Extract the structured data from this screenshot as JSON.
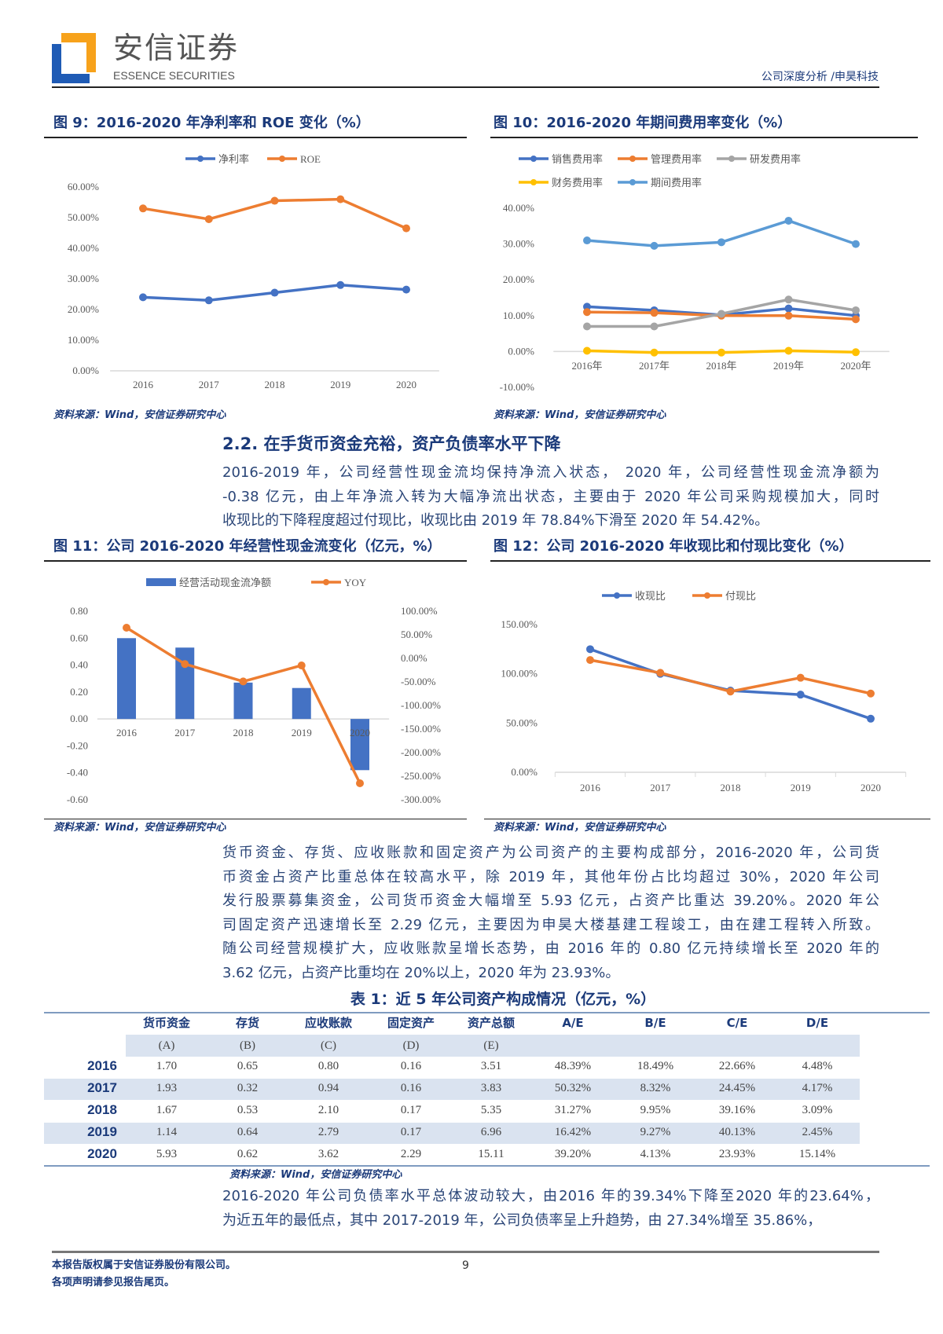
{
  "header": {
    "logo_cn": "安信证券",
    "logo_en": "ESSENCE SECURITIES",
    "report_type": "公司深度分析 /申昊科技",
    "logo_colors": {
      "blue": "#1f5bb5",
      "orange": "#f7a21b"
    }
  },
  "figures": {
    "fig9": {
      "title": "图 9：2016-2020 年净利率和 ROE 变化（%）",
      "source": "资料来源：Wind，安信证券研究中心"
    },
    "fig10": {
      "title": "图 10：2016-2020 年期间费用率变化（%）",
      "source": "资料来源：Wind，安信证券研究中心"
    },
    "fig11": {
      "title": "图 11：公司 2016-2020 年经营性现金流变化（亿元，%）",
      "source": "资料来源：Wind，安信证券研究中心"
    },
    "fig12": {
      "title": "图 12：公司 2016-2020 年收现比和付现比变化（%）",
      "source": "资料来源：Wind，安信证券研究中心"
    }
  },
  "section": {
    "heading": "2.2. 在手货币资金充裕，资产负债率水平下降",
    "para1": [
      "2016-2019 年，公司经营性现金流均保持净流入状态， 2020 年，公司经营性现金流净额为",
      "-0.38 亿元，由上年净流入转为大幅净流出状态，主要由于 2020 年公司采购规模加大，同时",
      "收现比的下降程度超过付现比，收现比由 2019 年 78.84%下滑至 2020 年 54.42%。"
    ],
    "para2": [
      "货币资金、存货、应收账款和固定资产为公司资产的主要构成部分，2016-2020 年，公司货",
      "币资金占资产比重总体在较高水平，除 2019 年，其他年份占比均超过 30%，2020 年公司",
      "发行股票募集资金，公司货币资金大幅增至 5.93 亿元，占资产比重达 39.20%。2020 年公",
      "司固定资产迅速增长至 2.29 亿元，主要因为申昊大楼基建工程竣工，由在建工程转入所致。",
      "随公司经营规模扩大，应收账款呈增长态势，由 2016 年的 0.80 亿元持续增长至 2020 年的",
      "3.62 亿元，占资产比重均在 20%以上，2020 年为 23.93%。"
    ],
    "para3": [
      "2016-2020 年公司负债率水平总体波动较大，由2016 年的39.34%下降至2020 年的23.64%，",
      "为近五年的最低点，其中 2017-2019 年，公司负债率呈上升趋势，由 27.34%增至 35.86%，"
    ]
  },
  "table": {
    "title": "表 1：近 5 年公司资产构成情况（亿元，%）",
    "headers": [
      "货币资金",
      "存货",
      "应收账款",
      "固定资产",
      "资产总额",
      "A/E",
      "B/E",
      "C/E",
      "D/E"
    ],
    "subheaders": [
      "(A)",
      "(B)",
      "(C)",
      "(D)",
      "(E)"
    ],
    "rows": [
      {
        "year": "2016",
        "cells": [
          "1.70",
          "0.65",
          "0.80",
          "0.16",
          "3.51",
          "48.39%",
          "18.49%",
          "22.66%",
          "4.48%"
        ]
      },
      {
        "year": "2017",
        "cells": [
          "1.93",
          "0.32",
          "0.94",
          "0.16",
          "3.83",
          "50.32%",
          "8.32%",
          "24.45%",
          "4.17%"
        ]
      },
      {
        "year": "2018",
        "cells": [
          "1.67",
          "0.53",
          "2.10",
          "0.17",
          "5.35",
          "31.27%",
          "9.95%",
          "39.16%",
          "3.09%"
        ]
      },
      {
        "year": "2019",
        "cells": [
          "1.14",
          "0.64",
          "2.79",
          "0.17",
          "6.96",
          "16.42%",
          "9.27%",
          "40.13%",
          "2.45%"
        ]
      },
      {
        "year": "2020",
        "cells": [
          "5.93",
          "0.62",
          "3.62",
          "2.29",
          "15.11",
          "39.20%",
          "4.13%",
          "23.93%",
          "15.14%"
        ]
      }
    ],
    "source": "资料来源：Wind，安信证券研究中心"
  },
  "footer": {
    "line1": "本报告版权属于安信证券股份有限公司。",
    "line2": "各项声明请参见报告尾页。",
    "page_number": "9"
  },
  "chart_data": [
    {
      "type": "line",
      "categories": [
        "2016",
        "2017",
        "2018",
        "2019",
        "2020"
      ],
      "ylim": [
        0,
        60
      ],
      "yticks": [
        "0.00%",
        "10.00%",
        "20.00%",
        "30.00%",
        "40.00%",
        "50.00%",
        "60.00%"
      ],
      "legend": "top",
      "series": [
        {
          "name": "净利率",
          "color": "#4472c4",
          "values": [
            24.0,
            23.0,
            25.5,
            28.0,
            26.5
          ]
        },
        {
          "name": "ROE",
          "color": "#ed7d31",
          "values": [
            53.0,
            49.5,
            55.5,
            56.0,
            46.5
          ]
        }
      ]
    },
    {
      "type": "line",
      "categories": [
        "2016年",
        "2017年",
        "2018年",
        "2019年",
        "2020年"
      ],
      "ylim": [
        -10,
        40
      ],
      "yticks": [
        "-10.00%",
        "0.00%",
        "10.00%",
        "20.00%",
        "30.00%",
        "40.00%"
      ],
      "legend": "top",
      "series": [
        {
          "name": "销售费用率",
          "color": "#4472c4",
          "values": [
            12.5,
            11.5,
            10.2,
            12.0,
            10.0
          ]
        },
        {
          "name": "管理费用率",
          "color": "#ed7d31",
          "values": [
            11.0,
            10.8,
            10.0,
            10.0,
            9.0
          ]
        },
        {
          "name": "研发费用率",
          "color": "#a5a5a5",
          "values": [
            7.0,
            7.0,
            10.5,
            14.5,
            11.5
          ]
        },
        {
          "name": "财务费用率",
          "color": "#ffc000",
          "values": [
            0.2,
            -0.3,
            -0.3,
            0.2,
            -0.2
          ]
        },
        {
          "name": "期间费用率",
          "color": "#5b9bd5",
          "values": [
            31.0,
            29.5,
            30.5,
            36.5,
            30.0
          ]
        }
      ]
    },
    {
      "type": "bar+line",
      "categories": [
        "2016",
        "2017",
        "2018",
        "2019",
        "2020"
      ],
      "ylim": [
        -0.6,
        0.8
      ],
      "yticks": [
        "-0.60",
        "-0.40",
        "-0.20",
        "0.00",
        "0.20",
        "0.40",
        "0.60",
        "0.80"
      ],
      "y2lim": [
        -300,
        100
      ],
      "y2ticks": [
        "-300.00%",
        "-250.00%",
        "-200.00%",
        "-150.00%",
        "-100.00%",
        "-50.00%",
        "0.00%",
        "50.00%",
        "100.00%"
      ],
      "legend": "top",
      "series": [
        {
          "name": "经营活动现金流净额",
          "kind": "bar",
          "axis": "left",
          "color": "#4472c4",
          "values": [
            0.6,
            0.53,
            0.27,
            0.23,
            -0.38
          ]
        },
        {
          "name": "YOY",
          "kind": "line",
          "axis": "right",
          "color": "#ed7d31",
          "values": [
            65,
            -12,
            -49,
            -15,
            -265
          ]
        }
      ]
    },
    {
      "type": "line",
      "categories": [
        "2016",
        "2017",
        "2018",
        "2019",
        "2020"
      ],
      "ylim": [
        0,
        150
      ],
      "yticks": [
        "0.00%",
        "50.00%",
        "100.00%",
        "150.00%"
      ],
      "legend": "top",
      "series": [
        {
          "name": "收现比",
          "color": "#4472c4",
          "values": [
            125,
            100,
            83,
            78.84,
            54.42
          ]
        },
        {
          "name": "付现比",
          "color": "#ed7d31",
          "values": [
            114,
            101,
            82,
            96,
            80
          ]
        }
      ]
    }
  ]
}
